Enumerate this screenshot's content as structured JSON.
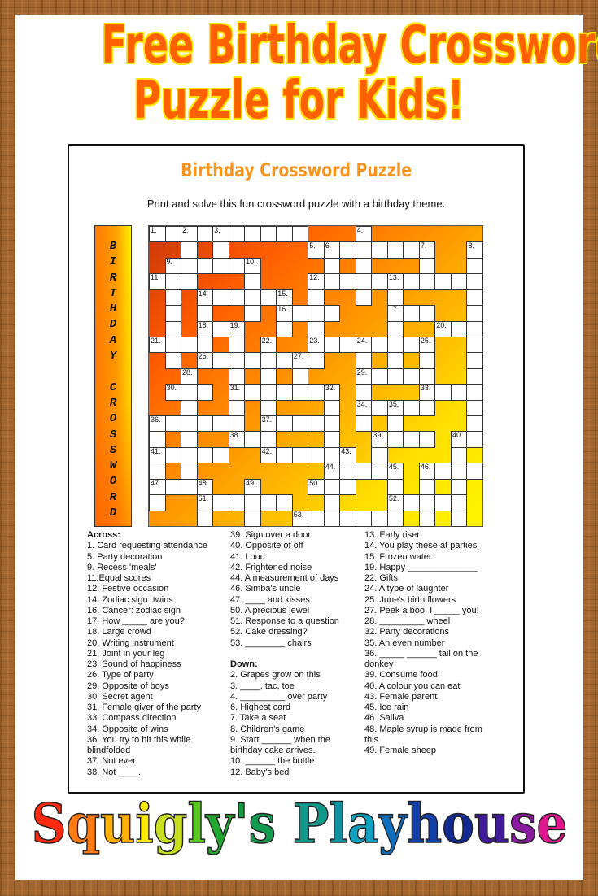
{
  "header": {
    "title_line1": "Free Birthday Crossword",
    "title_line2": "Puzzle for Kids!"
  },
  "sheet": {
    "title": "Birthday Crossword Puzzle",
    "subtitle": "Print and solve this fun crossword puzzle with a birthday theme.",
    "sidebar_letters": [
      "B",
      "I",
      "R",
      "T",
      "H",
      "D",
      "A",
      "Y",
      "",
      "C",
      "R",
      "O",
      "S",
      "S",
      "W",
      "O",
      "R",
      "D"
    ]
  },
  "colors": {
    "title": "#ff6000",
    "title_outline": "#ffe600",
    "sheet_title": "#f7941d",
    "grid_gradient": [
      "#c83508",
      "#ff5a00",
      "#ff8a00",
      "#ffb300",
      "#ffdf00",
      "#fff500"
    ]
  },
  "grid": {
    "cols": 21,
    "rows": [
      "111111111100010000000",
      "001010000011111111001",
      "011111100001010001001",
      "111000100011111111111",
      "010111111010010100001",
      "010100101111000111001",
      "010111001010000100111",
      "111101010011111111001",
      "010111111110010101001",
      "001001010100011111001",
      "011101111111010001111",
      "001001010001011111001",
      "111111011111010100001",
      "101001110001001111011",
      "111110011111101000010",
      "101000000001111101111",
      "111100100011100101010",
      "100111111001000111110",
      "000100100111111101010"
    ],
    "numbers": [
      {
        "n": "1.",
        "r": 0,
        "c": 0
      },
      {
        "n": "2.",
        "r": 0,
        "c": 2
      },
      {
        "n": "3.",
        "r": 0,
        "c": 4
      },
      {
        "n": "4.",
        "r": 0,
        "c": 13
      },
      {
        "n": "5.",
        "r": 1,
        "c": 10
      },
      {
        "n": "6.",
        "r": 1,
        "c": 11
      },
      {
        "n": "7.",
        "r": 1,
        "c": 17
      },
      {
        "n": "8.",
        "r": 1,
        "c": 20
      },
      {
        "n": "9.",
        "r": 2,
        "c": 1
      },
      {
        "n": "10.",
        "r": 2,
        "c": 6
      },
      {
        "n": "11.",
        "r": 3,
        "c": 0
      },
      {
        "n": "12.",
        "r": 3,
        "c": 10
      },
      {
        "n": "13.",
        "r": 3,
        "c": 15
      },
      {
        "n": "14.",
        "r": 4,
        "c": 3
      },
      {
        "n": "15.",
        "r": 4,
        "c": 8
      },
      {
        "n": "16.",
        "r": 5,
        "c": 8
      },
      {
        "n": "17.",
        "r": 5,
        "c": 15
      },
      {
        "n": "18.",
        "r": 6,
        "c": 3
      },
      {
        "n": "19.",
        "r": 6,
        "c": 5
      },
      {
        "n": "20.",
        "r": 6,
        "c": 18
      },
      {
        "n": "21.",
        "r": 7,
        "c": 0
      },
      {
        "n": "22.",
        "r": 7,
        "c": 7
      },
      {
        "n": "23.",
        "r": 7,
        "c": 10
      },
      {
        "n": "24.",
        "r": 7,
        "c": 13
      },
      {
        "n": "25.",
        "r": 7,
        "c": 17
      },
      {
        "n": "26.",
        "r": 8,
        "c": 3
      },
      {
        "n": "27.",
        "r": 8,
        "c": 9
      },
      {
        "n": "28.",
        "r": 9,
        "c": 2
      },
      {
        "n": "29.",
        "r": 9,
        "c": 13
      },
      {
        "n": "30.",
        "r": 10,
        "c": 1
      },
      {
        "n": "31.",
        "r": 10,
        "c": 5
      },
      {
        "n": "32.",
        "r": 10,
        "c": 11
      },
      {
        "n": "33.",
        "r": 10,
        "c": 17
      },
      {
        "n": "34.",
        "r": 11,
        "c": 13
      },
      {
        "n": "35.",
        "r": 11,
        "c": 15
      },
      {
        "n": "36.",
        "r": 12,
        "c": 0
      },
      {
        "n": "37.",
        "r": 12,
        "c": 7
      },
      {
        "n": "38.",
        "r": 13,
        "c": 5
      },
      {
        "n": "39.",
        "r": 13,
        "c": 14
      },
      {
        "n": "40.",
        "r": 13,
        "c": 19
      },
      {
        "n": "41.",
        "r": 14,
        "c": 0
      },
      {
        "n": "42.",
        "r": 14,
        "c": 7
      },
      {
        "n": "43.",
        "r": 14,
        "c": 12
      },
      {
        "n": "44.",
        "r": 15,
        "c": 11
      },
      {
        "n": "45.",
        "r": 15,
        "c": 15
      },
      {
        "n": "46.",
        "r": 15,
        "c": 17
      },
      {
        "n": "47.",
        "r": 16,
        "c": 0
      },
      {
        "n": "48.",
        "r": 16,
        "c": 3
      },
      {
        "n": "49.",
        "r": 16,
        "c": 6
      },
      {
        "n": "50.",
        "r": 16,
        "c": 10
      },
      {
        "n": "51.",
        "r": 17,
        "c": 3
      },
      {
        "n": "52.",
        "r": 17,
        "c": 15
      },
      {
        "n": "53.",
        "r": 18,
        "c": 9
      }
    ]
  },
  "clues": {
    "across_heading": "Across:",
    "across": [
      "1. Card requesting attendance",
      "5. Party decoration",
      "9. Recess 'meals'",
      "11.Equal scores",
      "12. Festive occasion",
      "14. Zodiac sign: twins",
      "16. Cancer: zodiac sign",
      "17. How _____ are you?",
      "18. Large crowd",
      "20. Writing instrument",
      "21. Joint in your leg",
      "23. Sound of happiness",
      "26. Type of party",
      "29. Opposite of boys",
      "30. Secret agent",
      "31. Female giver of the party",
      "33. Compass direction",
      "34. Opposite of  wins",
      "36. You try to hit this while blindfolded",
      "37. Not ever",
      "38.  Not ____.",
      "39. Sign over a door",
      "40. Opposite of off",
      "41. Loud",
      "42. Frightened noise",
      "44. A measurement of days",
      "46. Simba's uncle",
      "47. ____ and kisses",
      "50. A precious jewel",
      "51. Response to a question",
      "52. Cake dressing?",
      "53. ________ chairs"
    ],
    "down_heading": "Down:",
    "down": [
      "2. Grapes grow  on this",
      "3. ____, tac, toe",
      "4. _________ over party",
      "6. Highest card",
      "7. Take a seat",
      "8. Children's game",
      "9. Start ______ when the birthday cake arrives.",
      "10. ______ the bottle",
      "12. Baby's bed",
      "13. Early riser",
      "14. You play these at parties",
      "15. Frozen water",
      "19. Happy ______________",
      "22. Gifts",
      "24. A type of laughter",
      "25. June's birth flowers",
      "27. Peek a boo, I _____ you!",
      "28. _________ wheel",
      "32. Party decorations",
      "35. An even number",
      "36. _____ ______ tail on the donkey",
      "39. Consume food",
      "40. A colour you can eat",
      "43. Female parent",
      "45. Ice rain",
      "46. Saliva",
      "48. Maple syrup is made from this",
      "49. Female sheep"
    ]
  },
  "footer": {
    "logo_text": "Squigly's Playhouse",
    "logo_colors": [
      "#ff2a10",
      "#ff7a10",
      "#ffb000",
      "#ffe800",
      "#c8e020",
      "#5ac820",
      "#22a830",
      "#1a9a40",
      "#129a50",
      "#ffffff",
      "#10988a",
      "#1090a0",
      "#10a0c0",
      "#1070c0",
      "#1040a8",
      "#102890",
      "#401a98",
      "#8a1aa0",
      "#e01890"
    ]
  }
}
